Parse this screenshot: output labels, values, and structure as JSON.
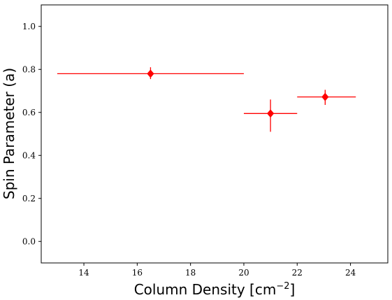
{
  "chart_data": {
    "type": "scatter",
    "title": "",
    "xlabel": "Column Density [cm",
    "xlabel_superscript": "−2",
    "xlabel_suffix": "]",
    "ylabel": "Spin Parameter (a)",
    "xlim": [
      12.4,
      25.4
    ],
    "ylim": [
      -0.1,
      1.1
    ],
    "x_ticks": [
      14,
      16,
      18,
      20,
      22,
      24
    ],
    "y_ticks": [
      0.0,
      0.2,
      0.4,
      0.6,
      0.8,
      1.0
    ],
    "x_tick_labels": [
      "14",
      "16",
      "18",
      "20",
      "22",
      "24"
    ],
    "y_tick_labels": [
      "0.0",
      "0.2",
      "0.4",
      "0.6",
      "0.8",
      "1.0"
    ],
    "grid": false,
    "series": [
      {
        "color": "#ff0000",
        "marker": "diamond",
        "points": [
          {
            "x": 16.5,
            "y": 0.78,
            "xerr_low": 13.0,
            "xerr_high": 20.0,
            "yerr_low": 0.755,
            "yerr_high": 0.81
          },
          {
            "x": 21.0,
            "y": 0.595,
            "xerr_low": 20.0,
            "xerr_high": 22.0,
            "yerr_low": 0.51,
            "yerr_high": 0.66
          },
          {
            "x": 23.05,
            "y": 0.672,
            "xerr_low": 22.0,
            "xerr_high": 24.2,
            "yerr_low": 0.635,
            "yerr_high": 0.705
          }
        ]
      }
    ]
  }
}
